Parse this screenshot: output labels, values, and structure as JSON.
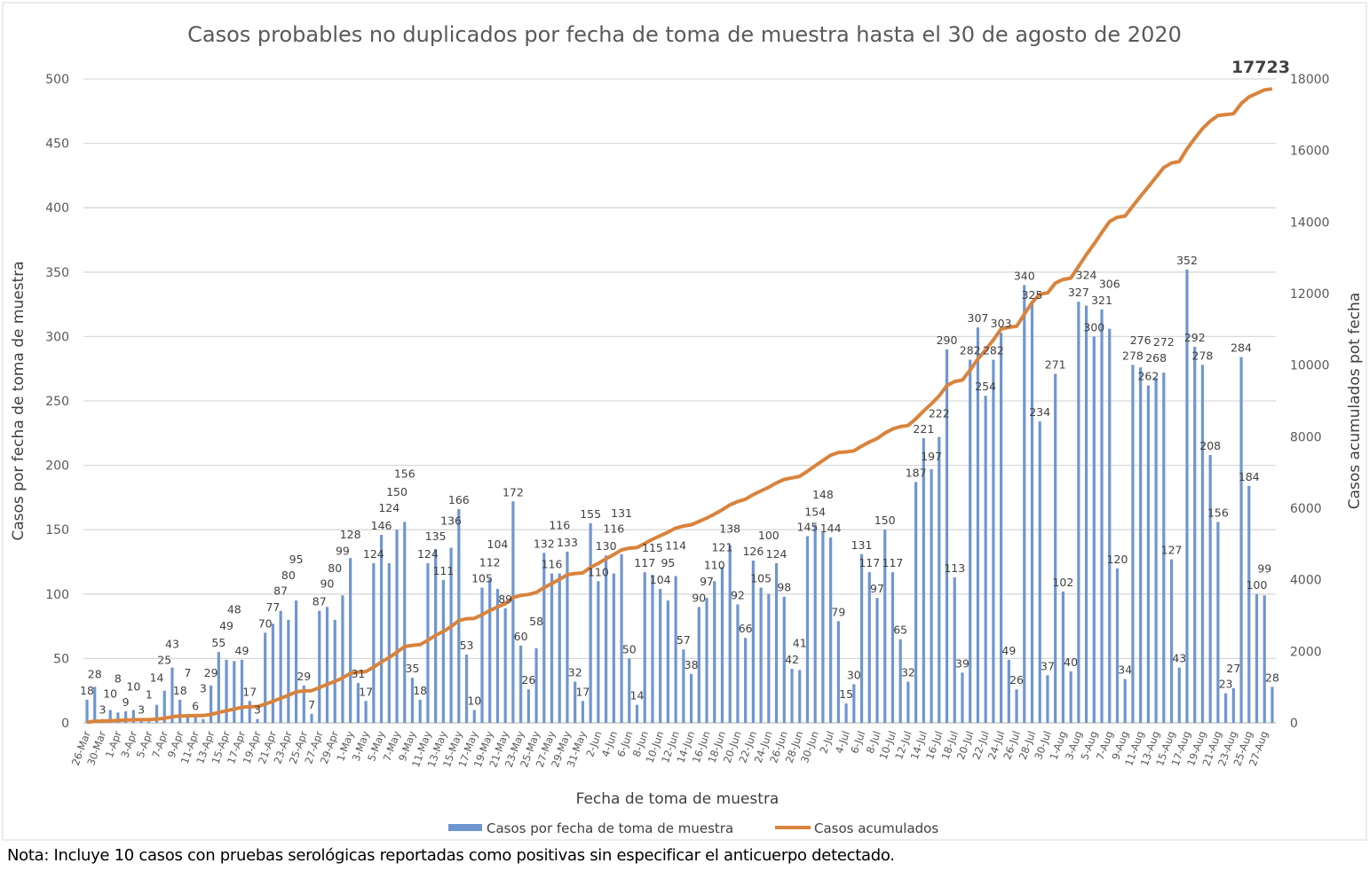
{
  "chart_data": {
    "type": "bar+line",
    "title": "Casos probables no duplicados por fecha de toma de muestra hasta el  30 de agosto de 2020",
    "xlabel": "Fecha de toma de muestra",
    "ylabel": "Casos por fecha de toma de muestra",
    "y2label": "Casos acumulados pot fecha",
    "ylim": [
      0,
      500
    ],
    "y2lim": [
      0,
      18000
    ],
    "yticks": [
      "0",
      "50",
      "100",
      "150",
      "200",
      "250",
      "300",
      "350",
      "400",
      "450",
      "500"
    ],
    "y2ticks": [
      "0",
      "2000",
      "4000",
      "6000",
      "8000",
      "10000",
      "12000",
      "14000",
      "16000",
      "18000"
    ],
    "grid": true,
    "legend_position": "bottom",
    "final_total_label": "17723",
    "tick_labels": [
      "26-Mar",
      "30-Mar",
      "1-Apr",
      "3-Apr",
      "5-Apr",
      "7-Apr",
      "9-Apr",
      "11-Apr",
      "13-Apr",
      "15-Apr",
      "17-Apr",
      "19-Apr",
      "21-Apr",
      "23-Apr",
      "25-Apr",
      "27-Apr",
      "29-Apr",
      "1-May",
      "3-May",
      "5-May",
      "7-May",
      "9-May",
      "11-May",
      "13-May",
      "15-May",
      "17-May",
      "19-May",
      "21-May",
      "23-May",
      "25-May",
      "27-May",
      "29-May",
      "31-May",
      "2-Jun",
      "4-Jun",
      "6-Jun",
      "8-Jun",
      "10-Jun",
      "12-Jun",
      "14-Jun",
      "16-Jun",
      "18-Jun",
      "20-Jun",
      "22-Jun",
      "24-Jun",
      "26-Jun",
      "28-Jun",
      "30-Jun",
      "2-Jul",
      "4-Jul",
      "6-Jul",
      "8-Jul",
      "10-Jul",
      "12-Jul",
      "14-Jul",
      "16-Jul",
      "18-Jul",
      "20-Jul",
      "22-Jul",
      "24-Jul",
      "26-Jul",
      "28-Jul",
      "30-Jul",
      "1-Aug",
      "3-Aug",
      "5-Aug",
      "7-Aug",
      "9-Aug",
      "11-Aug",
      "13-Aug",
      "15-Aug",
      "17-Aug",
      "19-Aug",
      "21-Aug",
      "23-Aug",
      "25-Aug",
      "27-Aug"
    ],
    "series": [
      {
        "name": "Casos por fecha de toma de muestra",
        "type": "bar",
        "axis": "left",
        "color": "#6f96d1",
        "values": [
          18,
          28,
          3,
          10,
          8,
          9,
          10,
          3,
          1,
          14,
          25,
          43,
          18,
          7,
          6,
          3,
          29,
          55,
          49,
          48,
          49,
          17,
          3,
          70,
          77,
          87,
          80,
          95,
          29,
          7,
          87,
          90,
          80,
          99,
          128,
          31,
          17,
          124,
          146,
          124,
          150,
          156,
          35,
          18,
          124,
          135,
          111,
          136,
          166,
          53,
          10,
          105,
          112,
          104,
          89,
          172,
          60,
          26,
          58,
          132,
          116,
          116,
          133,
          32,
          17,
          155,
          110,
          130,
          116,
          131,
          50,
          14,
          117,
          115,
          104,
          95,
          114,
          57,
          38,
          90,
          97,
          110,
          121,
          138,
          92,
          66,
          126,
          105,
          100,
          124,
          98,
          42,
          41,
          145,
          154,
          148,
          144,
          79,
          15,
          30,
          131,
          117,
          97,
          150,
          117,
          65,
          32,
          187,
          221,
          197,
          222,
          290,
          113,
          39,
          282,
          307,
          254,
          282,
          303,
          49,
          26,
          340,
          325,
          234,
          37,
          271,
          102,
          40,
          327,
          324,
          300,
          321,
          306,
          120,
          34,
          278,
          276,
          262,
          268,
          272,
          127,
          43,
          352,
          292,
          278,
          208,
          156,
          23,
          27,
          284,
          184,
          100,
          99,
          28
        ]
      },
      {
        "name": "Casos acumulados",
        "type": "line",
        "axis": "right",
        "color": "#d9833c",
        "derived_from": "cumulative sum of daily cases"
      }
    ]
  },
  "note": "Nota: Incluye 10 casos con pruebas serológicas reportadas como positivas sin especificar el anticuerpo detectado."
}
